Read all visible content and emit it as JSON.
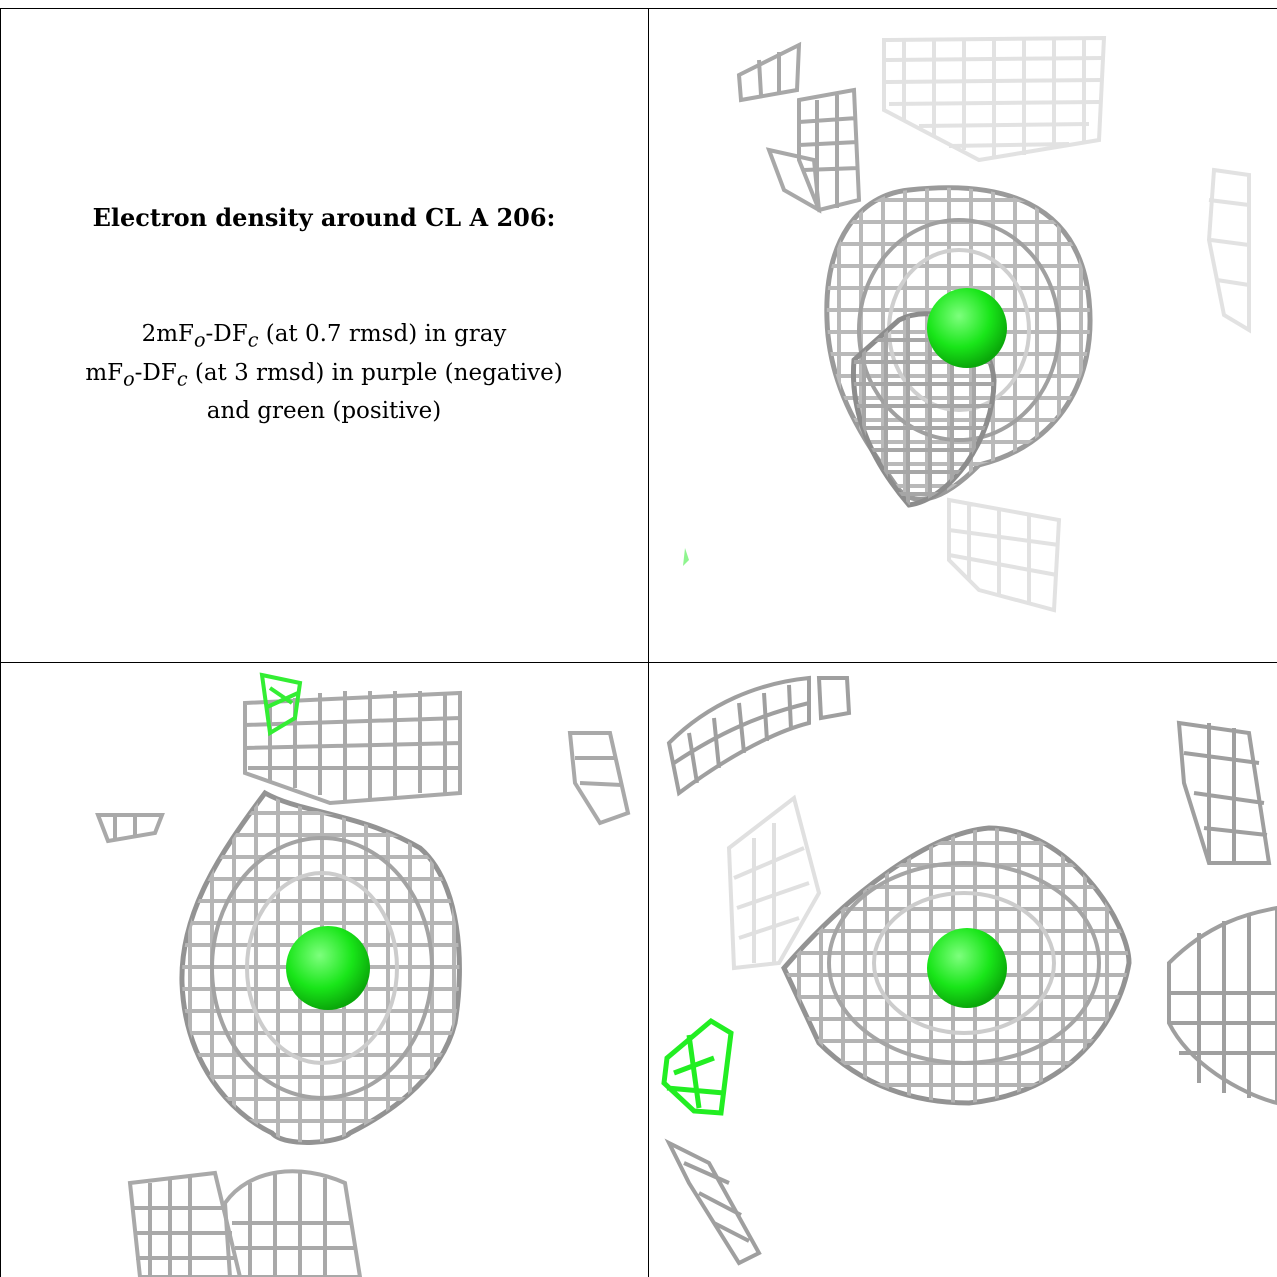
{
  "caption": {
    "title": "Electron density around CL A 206:",
    "line1": {
      "a": "2mF",
      "sub1": "o",
      "b": "-DF",
      "sub2": "c",
      "c": " (at 0.7 rmsd) in gray"
    },
    "line2": {
      "a": "mF",
      "sub1": "o",
      "b": "-DF",
      "sub2": "c",
      "c": " (at 3 rmsd) in purple (negative)"
    },
    "line3": "and green (positive)"
  },
  "colors": {
    "mesh_gray": "#b9b9b9",
    "mesh_dark": "#8a8a8a",
    "mesh_light": "#dcdcdc",
    "atom_green": "#19e619",
    "positive_green": "#22ee22",
    "rule": "#000000"
  },
  "views": [
    {
      "name": "view-top-right"
    },
    {
      "name": "view-bottom-left"
    },
    {
      "name": "view-bottom-right"
    }
  ]
}
